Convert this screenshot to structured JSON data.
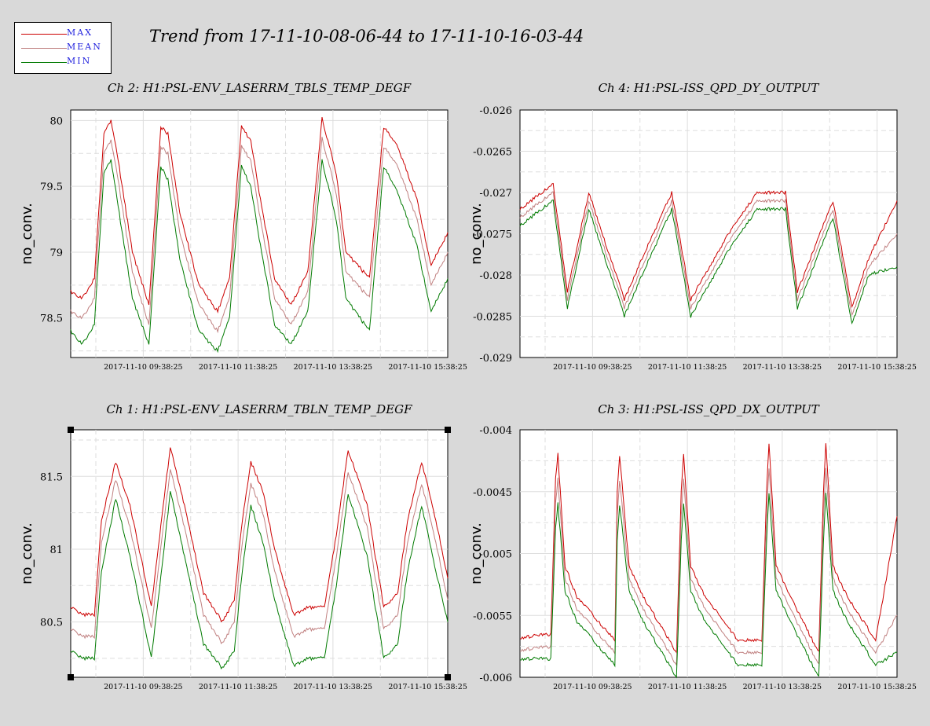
{
  "title": "Trend from 17-11-10-08-06-44 to 17-11-10-16-03-44",
  "legend": [
    {
      "label": "MAX",
      "color": "#cc0000"
    },
    {
      "label": "MEAN",
      "color": "#c08080"
    },
    {
      "label": "MIN",
      "color": "#007a00"
    }
  ],
  "x_tick_labels": [
    "2017-11-10 09:38:25",
    "2017-11-10 11:38:25",
    "2017-11-10 13:38:25",
    "2017-11-10 15:38:25"
  ],
  "chart_data": [
    {
      "type": "line",
      "title": "Ch 2: H1:PSL-ENV_LASERRM_TBLS_TEMP_DEGF",
      "ylabel": "no_conv.",
      "xlabel": "",
      "x_unit": "hours since 2017-11-10 08:06:44",
      "ylim": [
        78.2,
        80.08
      ],
      "yticks": [
        80,
        79.5,
        79,
        78.5
      ],
      "ytick_labels": [
        "80",
        "79.5",
        "79",
        "78.5"
      ],
      "x": [
        0,
        0.25,
        0.5,
        0.7,
        0.85,
        1.0,
        1.3,
        1.65,
        1.9,
        2.05,
        2.3,
        2.7,
        3.1,
        3.35,
        3.6,
        3.8,
        4.0,
        4.3,
        4.65,
        5.0,
        5.3,
        5.6,
        5.8,
        6.3,
        6.6,
        6.9,
        7.3,
        7.6,
        7.95
      ],
      "series": [
        {
          "name": "MAX",
          "values": [
            78.7,
            78.65,
            78.8,
            79.9,
            80.0,
            79.7,
            79.0,
            78.6,
            79.95,
            79.9,
            79.3,
            78.75,
            78.55,
            78.8,
            79.95,
            79.85,
            79.4,
            78.8,
            78.6,
            78.85,
            80.02,
            79.6,
            79.0,
            78.8,
            79.95,
            79.8,
            79.4,
            78.9,
            79.15
          ]
        },
        {
          "name": "MEAN",
          "values": [
            78.55,
            78.5,
            78.65,
            79.75,
            79.85,
            79.55,
            78.85,
            78.45,
            79.8,
            79.75,
            79.15,
            78.6,
            78.4,
            78.65,
            79.8,
            79.7,
            79.25,
            78.65,
            78.45,
            78.7,
            79.87,
            79.45,
            78.85,
            78.65,
            79.8,
            79.65,
            79.25,
            78.75,
            79.0
          ]
        },
        {
          "name": "MIN",
          "values": [
            78.4,
            78.3,
            78.45,
            79.6,
            79.7,
            79.35,
            78.65,
            78.3,
            79.65,
            79.55,
            78.95,
            78.4,
            78.25,
            78.5,
            79.65,
            79.5,
            79.05,
            78.45,
            78.3,
            78.55,
            79.7,
            79.25,
            78.65,
            78.4,
            79.65,
            79.45,
            79.05,
            78.55,
            78.8
          ]
        }
      ]
    },
    {
      "type": "line",
      "title": "Ch 4: H1:PSL-ISS_QPD_DY_OUTPUT",
      "ylabel": "no_conv.",
      "xlabel": "",
      "x_unit": "hours since 2017-11-10 08:06:44",
      "ylim": [
        -0.029,
        -0.026
      ],
      "yticks": [
        -0.026,
        -0.0265,
        -0.027,
        -0.0275,
        -0.028,
        -0.0285,
        -0.029
      ],
      "ytick_labels": [
        "-0.026",
        "-0.0265",
        "-0.027",
        "-0.0275",
        "-0.028",
        "-0.0285",
        "-0.029"
      ],
      "x": [
        0,
        0.7,
        1.0,
        1.45,
        2.2,
        2.5,
        3.2,
        3.6,
        4.4,
        5.0,
        5.6,
        5.85,
        6.6,
        7.0,
        7.35,
        7.95
      ],
      "series": [
        {
          "name": "MAX",
          "values": [
            -0.0272,
            -0.0269,
            -0.0282,
            -0.027,
            -0.0283,
            -0.0279,
            -0.027,
            -0.0283,
            -0.0275,
            -0.027,
            -0.027,
            -0.0282,
            -0.0271,
            -0.0284,
            -0.0278,
            -0.0271
          ]
        },
        {
          "name": "MEAN",
          "values": [
            -0.0273,
            -0.027,
            -0.0283,
            -0.0271,
            -0.0284,
            -0.028,
            -0.0271,
            -0.0284,
            -0.0276,
            -0.0271,
            -0.0271,
            -0.0283,
            -0.0272,
            -0.0285,
            -0.0279,
            -0.0275
          ]
        },
        {
          "name": "MIN",
          "values": [
            -0.0274,
            -0.0271,
            -0.0284,
            -0.0272,
            -0.0285,
            -0.0281,
            -0.0272,
            -0.0285,
            -0.0277,
            -0.0272,
            -0.0272,
            -0.0284,
            -0.0273,
            -0.0286,
            -0.028,
            -0.0279
          ]
        }
      ]
    },
    {
      "type": "line",
      "title": "Ch 1: H1:PSL-ENV_LASERRM_TBLN_TEMP_DEGF",
      "ylabel": "no_conv.",
      "xlabel": "",
      "x_unit": "hours since 2017-11-10 08:06:44",
      "ylim": [
        80.12,
        81.82
      ],
      "yticks": [
        81.5,
        81,
        80.5
      ],
      "ytick_labels": [
        "81.5",
        "81",
        "80.5"
      ],
      "x": [
        0,
        0.25,
        0.5,
        0.65,
        0.95,
        1.25,
        1.7,
        1.95,
        2.1,
        2.4,
        2.8,
        3.2,
        3.45,
        3.6,
        3.8,
        4.05,
        4.3,
        4.7,
        5.0,
        5.35,
        5.6,
        5.85,
        6.25,
        6.6,
        6.9,
        7.1,
        7.4,
        7.7,
        7.95
      ],
      "series": [
        {
          "name": "MAX",
          "values": [
            80.6,
            80.55,
            80.55,
            81.2,
            81.6,
            81.3,
            80.6,
            81.3,
            81.7,
            81.3,
            80.7,
            80.5,
            80.65,
            81.15,
            81.6,
            81.4,
            81.0,
            80.55,
            80.6,
            80.6,
            81.1,
            81.68,
            81.3,
            80.6,
            80.7,
            81.2,
            81.6,
            81.2,
            80.8
          ]
        },
        {
          "name": "MEAN",
          "values": [
            80.45,
            80.4,
            80.4,
            81.05,
            81.48,
            81.15,
            80.45,
            81.15,
            81.55,
            81.15,
            80.55,
            80.35,
            80.5,
            81.0,
            81.45,
            81.25,
            80.85,
            80.4,
            80.45,
            80.45,
            80.95,
            81.53,
            81.15,
            80.45,
            80.55,
            81.05,
            81.45,
            81.05,
            80.65
          ]
        },
        {
          "name": "MIN",
          "values": [
            80.3,
            80.25,
            80.25,
            80.85,
            81.35,
            80.95,
            80.25,
            80.95,
            81.4,
            80.95,
            80.35,
            80.18,
            80.3,
            80.8,
            81.3,
            81.05,
            80.65,
            80.2,
            80.25,
            80.25,
            80.75,
            81.38,
            80.95,
            80.25,
            80.35,
            80.85,
            81.3,
            80.85,
            80.5
          ]
        }
      ]
    },
    {
      "type": "line",
      "title": "Ch 3: H1:PSL-ISS_QPD_DX_OUTPUT",
      "ylabel": "no_conv.",
      "xlabel": "",
      "x_unit": "hours since 2017-11-10 08:06:44",
      "ylim": [
        -0.006,
        -0.004
      ],
      "yticks": [
        -0.004,
        -0.0045,
        -0.005,
        -0.0055,
        -0.006
      ],
      "ytick_labels": [
        "-0.004",
        "-0.0045",
        "-0.005",
        "-0.0055",
        "-0.006"
      ],
      "x": [
        0,
        0.65,
        0.75,
        0.8,
        0.95,
        1.2,
        2.0,
        2.05,
        2.1,
        2.3,
        2.6,
        3.3,
        3.4,
        3.45,
        3.6,
        3.9,
        4.6,
        4.9,
        5.1,
        5.2,
        5.25,
        5.4,
        5.7,
        6.3,
        6.4,
        6.45,
        6.6,
        6.9,
        7.5,
        7.95
      ],
      "series": [
        {
          "name": "MAX",
          "values": [
            -0.00568,
            -0.00565,
            -0.0044,
            -0.0042,
            -0.0051,
            -0.00535,
            -0.0057,
            -0.0045,
            -0.0042,
            -0.0051,
            -0.00535,
            -0.0058,
            -0.0045,
            -0.0042,
            -0.0051,
            -0.00535,
            -0.0057,
            -0.0057,
            -0.0057,
            -0.0045,
            -0.0041,
            -0.0051,
            -0.00535,
            -0.0058,
            -0.0045,
            -0.0041,
            -0.0051,
            -0.00535,
            -0.0057,
            -0.0047
          ]
        },
        {
          "name": "MEAN",
          "values": [
            -0.00578,
            -0.00575,
            -0.0046,
            -0.0044,
            -0.0052,
            -0.00545,
            -0.0058,
            -0.0047,
            -0.0044,
            -0.0052,
            -0.00545,
            -0.0059,
            -0.0047,
            -0.0044,
            -0.0052,
            -0.00545,
            -0.0058,
            -0.0058,
            -0.0058,
            -0.0047,
            -0.0043,
            -0.0052,
            -0.00545,
            -0.0059,
            -0.0047,
            -0.0043,
            -0.0052,
            -0.00545,
            -0.0058,
            -0.0055
          ]
        },
        {
          "name": "MIN",
          "values": [
            -0.00585,
            -0.00585,
            -0.0048,
            -0.0046,
            -0.0053,
            -0.00555,
            -0.0059,
            -0.0049,
            -0.0046,
            -0.0053,
            -0.00555,
            -0.006,
            -0.0049,
            -0.0046,
            -0.0053,
            -0.00555,
            -0.0059,
            -0.0059,
            -0.0059,
            -0.0049,
            -0.0045,
            -0.0053,
            -0.00555,
            -0.006,
            -0.0049,
            -0.0045,
            -0.0053,
            -0.00555,
            -0.0059,
            -0.0058
          ]
        }
      ]
    }
  ]
}
